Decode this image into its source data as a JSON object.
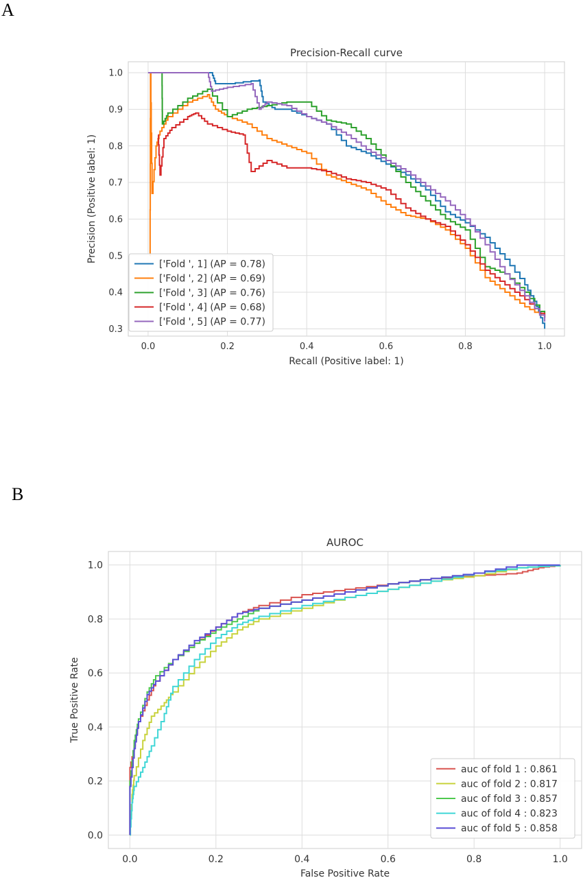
{
  "panel_labels": [
    "A",
    "B"
  ],
  "chart_data": [
    {
      "type": "line",
      "title": "Precision-Recall curve",
      "xlabel": "Recall (Positive label: 1)",
      "ylabel": "Precision (Positive label: 1)",
      "xlim": [
        -0.05,
        1.05
      ],
      "ylim": [
        0.28,
        1.03
      ],
      "xticks": [
        "0.0",
        "0.2",
        "0.4",
        "0.6",
        "0.8",
        "1.0"
      ],
      "yticks": [
        "0.3",
        "0.4",
        "0.5",
        "0.6",
        "0.7",
        "0.8",
        "0.9",
        "1.0"
      ],
      "grid": true,
      "legend_position": "lower-left",
      "series": [
        {
          "name": "['Fold ', 1] (AP = 0.78)",
          "color": "#1f77b4",
          "x": [
            0.0,
            0.16,
            0.17,
            0.2,
            0.28,
            0.29,
            0.32,
            0.35,
            0.4,
            0.45,
            0.5,
            0.55,
            0.6,
            0.65,
            0.7,
            0.75,
            0.8,
            0.85,
            0.9,
            0.95,
            0.98,
            1.0
          ],
          "y": [
            1.0,
            1.0,
            0.97,
            0.97,
            0.98,
            0.92,
            0.9,
            0.9,
            0.88,
            0.86,
            0.8,
            0.78,
            0.75,
            0.72,
            0.68,
            0.62,
            0.59,
            0.55,
            0.49,
            0.42,
            0.36,
            0.3
          ]
        },
        {
          "name": "['Fold ', 2] (AP = 0.69)",
          "color": "#ff7f0e",
          "x": [
            0.005,
            0.006,
            0.01,
            0.02,
            0.03,
            0.05,
            0.1,
            0.15,
            0.17,
            0.2,
            0.25,
            0.3,
            0.35,
            0.4,
            0.45,
            0.5,
            0.55,
            0.6,
            0.65,
            0.7,
            0.75,
            0.8,
            0.85,
            0.9,
            0.95,
            1.0
          ],
          "y": [
            0.5,
            1.0,
            0.67,
            0.8,
            0.84,
            0.88,
            0.92,
            0.94,
            0.9,
            0.88,
            0.86,
            0.82,
            0.8,
            0.78,
            0.72,
            0.7,
            0.68,
            0.64,
            0.61,
            0.6,
            0.57,
            0.52,
            0.44,
            0.4,
            0.36,
            0.33
          ]
        },
        {
          "name": "['Fold ', 3] (AP = 0.76)",
          "color": "#2ca02c",
          "x": [
            0.035,
            0.036,
            0.05,
            0.1,
            0.15,
            0.2,
            0.25,
            0.3,
            0.35,
            0.4,
            0.45,
            0.5,
            0.55,
            0.6,
            0.65,
            0.7,
            0.75,
            0.8,
            0.85,
            0.9,
            0.95,
            1.0
          ],
          "y": [
            1.0,
            0.86,
            0.89,
            0.93,
            0.955,
            0.88,
            0.9,
            0.91,
            0.92,
            0.92,
            0.87,
            0.86,
            0.82,
            0.76,
            0.7,
            0.65,
            0.6,
            0.57,
            0.47,
            0.45,
            0.4,
            0.33
          ]
        },
        {
          "name": "['Fold ', 4] (AP = 0.68)",
          "color": "#d62728",
          "x": [
            0.025,
            0.03,
            0.04,
            0.06,
            0.1,
            0.12,
            0.15,
            0.2,
            0.24,
            0.26,
            0.3,
            0.35,
            0.4,
            0.45,
            0.5,
            0.55,
            0.6,
            0.65,
            0.7,
            0.75,
            0.8,
            0.85,
            0.9,
            0.95,
            1.0
          ],
          "y": [
            0.83,
            0.72,
            0.82,
            0.85,
            0.88,
            0.89,
            0.86,
            0.84,
            0.83,
            0.73,
            0.76,
            0.74,
            0.74,
            0.73,
            0.71,
            0.7,
            0.68,
            0.63,
            0.6,
            0.58,
            0.53,
            0.46,
            0.42,
            0.38,
            0.33
          ]
        },
        {
          "name": "['Fold ', 5] (AP = 0.77)",
          "color": "#9467bd",
          "x": [
            0.0,
            0.15,
            0.16,
            0.2,
            0.26,
            0.28,
            0.3,
            0.35,
            0.4,
            0.45,
            0.5,
            0.55,
            0.6,
            0.65,
            0.7,
            0.75,
            0.8,
            0.85,
            0.9,
            0.95,
            1.0
          ],
          "y": [
            1.0,
            1.0,
            0.95,
            0.96,
            0.97,
            0.9,
            0.92,
            0.91,
            0.88,
            0.86,
            0.83,
            0.79,
            0.76,
            0.73,
            0.69,
            0.65,
            0.6,
            0.53,
            0.45,
            0.39,
            0.32
          ]
        }
      ]
    },
    {
      "type": "line",
      "title": "AUROC",
      "xlabel": "False Positive Rate",
      "ylabel": "True Positive Rate",
      "xlim": [
        -0.05,
        1.05
      ],
      "ylim": [
        -0.05,
        1.05
      ],
      "xticks": [
        "0.0",
        "0.2",
        "0.4",
        "0.6",
        "0.8",
        "1.0"
      ],
      "yticks": [
        "0.0",
        "0.2",
        "0.4",
        "0.6",
        "0.8",
        "1.0"
      ],
      "grid": true,
      "legend_position": "lower-right",
      "series": [
        {
          "name": "auc of fold 1 : 0.861",
          "color": "#d9534f",
          "x": [
            0.0,
            0.0,
            0.01,
            0.02,
            0.04,
            0.06,
            0.1,
            0.15,
            0.2,
            0.25,
            0.3,
            0.4,
            0.5,
            0.6,
            0.7,
            0.8,
            0.9,
            0.95,
            1.0
          ],
          "y": [
            0.0,
            0.25,
            0.33,
            0.42,
            0.5,
            0.57,
            0.65,
            0.71,
            0.77,
            0.82,
            0.85,
            0.89,
            0.91,
            0.93,
            0.95,
            0.96,
            0.97,
            0.99,
            1.0
          ]
        },
        {
          "name": "auc of fold 2 : 0.817",
          "color": "#c8d23c",
          "x": [
            0.0,
            0.005,
            0.01,
            0.03,
            0.05,
            0.08,
            0.1,
            0.15,
            0.2,
            0.25,
            0.3,
            0.4,
            0.5,
            0.6,
            0.7,
            0.8,
            0.9,
            1.0
          ],
          "y": [
            0.0,
            0.15,
            0.22,
            0.35,
            0.44,
            0.49,
            0.53,
            0.62,
            0.7,
            0.76,
            0.8,
            0.84,
            0.88,
            0.91,
            0.94,
            0.96,
            0.99,
            1.0
          ]
        },
        {
          "name": "auc of fold 3 : 0.857",
          "color": "#4ec94e",
          "x": [
            0.0,
            0.0,
            0.01,
            0.02,
            0.04,
            0.06,
            0.1,
            0.15,
            0.2,
            0.25,
            0.3,
            0.4,
            0.5,
            0.6,
            0.7,
            0.8,
            0.9,
            1.0
          ],
          "y": [
            0.0,
            0.2,
            0.35,
            0.43,
            0.53,
            0.59,
            0.65,
            0.71,
            0.76,
            0.8,
            0.84,
            0.87,
            0.9,
            0.93,
            0.95,
            0.97,
            0.99,
            1.0
          ]
        },
        {
          "name": "auc of fold 4 : 0.823",
          "color": "#3fd6d6",
          "x": [
            0.0,
            0.005,
            0.01,
            0.03,
            0.05,
            0.08,
            0.1,
            0.15,
            0.2,
            0.25,
            0.3,
            0.4,
            0.5,
            0.6,
            0.7,
            0.8,
            0.9,
            1.0
          ],
          "y": [
            0.0,
            0.12,
            0.18,
            0.25,
            0.33,
            0.45,
            0.55,
            0.65,
            0.73,
            0.78,
            0.81,
            0.85,
            0.88,
            0.91,
            0.94,
            0.97,
            0.99,
            1.0
          ]
        },
        {
          "name": "auc of fold 5 : 0.858",
          "color": "#5a4fd6",
          "x": [
            0.0,
            0.0,
            0.01,
            0.02,
            0.04,
            0.06,
            0.1,
            0.15,
            0.2,
            0.25,
            0.3,
            0.4,
            0.5,
            0.6,
            0.7,
            0.8,
            0.9,
            1.0
          ],
          "y": [
            0.0,
            0.18,
            0.32,
            0.42,
            0.52,
            0.57,
            0.65,
            0.72,
            0.77,
            0.82,
            0.84,
            0.87,
            0.9,
            0.93,
            0.95,
            0.97,
            1.0,
            1.0
          ]
        }
      ]
    }
  ]
}
